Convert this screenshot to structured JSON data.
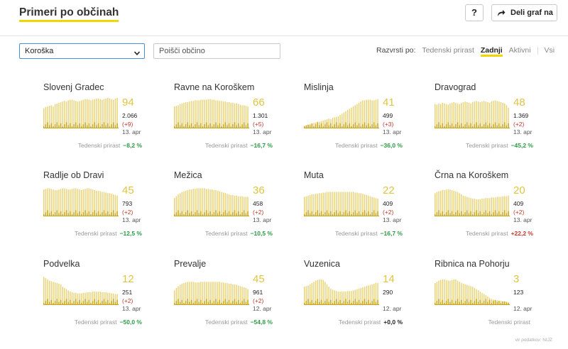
{
  "header": {
    "title": "Primeri po občinah",
    "help_label": "?",
    "share_label": "Deli graf na"
  },
  "filters": {
    "region": "Koroška",
    "search_placeholder": "Poišči občino",
    "sort_label": "Razvrsti po:",
    "sort_options": [
      {
        "label": "Tedenski prirast",
        "active": false
      },
      {
        "label": "Zadnji",
        "active": true
      },
      {
        "label": "Aktivni",
        "active": false
      },
      {
        "label": "Vsi",
        "active": false
      }
    ]
  },
  "colors": {
    "accent": "#f2d600",
    "bar_light": "#e8d376",
    "bar_dark": "#c9a417",
    "big_number": "#e0c441",
    "negative_growth": "#2e9a47",
    "positive_growth": "#c0392b"
  },
  "cards": [
    {
      "name": "Slovenj Gradec",
      "active": "94",
      "total": "2.066",
      "change": "(+9)",
      "date": "13. apr",
      "growth_label": "Tedenski prirast",
      "growth": "−8,2 %",
      "growth_sign": "neg",
      "series": [
        33,
        35,
        36,
        37,
        38,
        36,
        40,
        41,
        42,
        43,
        44,
        45,
        44,
        46,
        47,
        47,
        46,
        45,
        44,
        45,
        46,
        47,
        48,
        48,
        47,
        46,
        47,
        48,
        49,
        49,
        48,
        47,
        48,
        49,
        50,
        49,
        48,
        47,
        49,
        50
      ]
    },
    {
      "name": "Ravne na Koroškem",
      "active": "66",
      "total": "1.301",
      "change": "(+5)",
      "date": "13. apr",
      "growth_label": "Tedenski prirast",
      "growth": "−16,7 %",
      "growth_sign": "neg",
      "series": [
        36,
        37,
        38,
        40,
        41,
        42,
        43,
        43,
        44,
        45,
        45,
        46,
        46,
        46,
        47,
        47,
        47,
        47,
        48,
        48,
        47,
        47,
        46,
        46,
        45,
        45,
        44,
        44,
        43,
        43,
        42,
        42,
        41,
        41,
        40,
        39,
        38,
        38,
        37,
        36
      ]
    },
    {
      "name": "Mislinja",
      "active": "41",
      "total": "499",
      "change": "(+3)",
      "date": "13. apr",
      "growth_label": "Tedenski prirast",
      "growth": "−36,0 %",
      "growth_sign": "neg",
      "series": [
        4,
        5,
        6,
        7,
        8,
        9,
        10,
        11,
        11,
        12,
        13,
        14,
        15,
        16,
        15,
        17,
        18,
        19,
        20,
        22,
        24,
        26,
        28,
        30,
        32,
        34,
        36,
        38,
        40,
        42,
        44,
        46,
        46,
        47,
        47,
        47,
        46,
        46,
        47,
        48
      ]
    },
    {
      "name": "Dravograd",
      "active": "48",
      "total": "1.369",
      "change": "(+2)",
      "date": "13. apr",
      "growth_label": "Tedenski prirast",
      "growth": "−45,2 %",
      "growth_sign": "neg",
      "series": [
        40,
        39,
        41,
        40,
        42,
        41,
        40,
        39,
        41,
        42,
        43,
        42,
        41,
        40,
        42,
        43,
        44,
        43,
        42,
        41,
        43,
        44,
        45,
        44,
        43,
        44,
        45,
        44,
        43,
        42,
        44,
        45,
        46,
        45,
        44,
        43,
        42,
        41,
        38,
        34
      ]
    },
    {
      "name": "Radlje ob Dravi",
      "active": "45",
      "total": "793",
      "change": "(+2)",
      "date": "13. apr",
      "growth_label": "Tedenski prirast",
      "growth": "−12,5 %",
      "growth_sign": "neg",
      "series": [
        44,
        45,
        46,
        46,
        45,
        44,
        43,
        43,
        44,
        45,
        46,
        46,
        45,
        44,
        44,
        45,
        46,
        46,
        45,
        44,
        43,
        44,
        45,
        46,
        46,
        45,
        44,
        43,
        42,
        42,
        41,
        40,
        40,
        39,
        38,
        38,
        37,
        36,
        35,
        34
      ]
    },
    {
      "name": "Mežica",
      "active": "36",
      "total": "458",
      "change": "(+2)",
      "date": "13. apr",
      "growth_label": "Tedenski prirast",
      "growth": "−10,5 %",
      "growth_sign": "neg",
      "series": [
        30,
        33,
        36,
        38,
        40,
        41,
        42,
        43,
        44,
        44,
        45,
        45,
        46,
        46,
        46,
        46,
        46,
        45,
        45,
        44,
        44,
        43,
        43,
        42,
        41,
        40,
        39,
        38,
        37,
        36,
        35,
        35,
        34,
        34,
        33,
        33,
        33,
        32,
        32,
        32
      ]
    },
    {
      "name": "Muta",
      "active": "22",
      "total": "409",
      "change": "(+2)",
      "date": "13. apr",
      "growth_label": "Tedenski prirast",
      "growth": "−16,7 %",
      "growth_sign": "neg",
      "series": [
        32,
        33,
        34,
        35,
        36,
        36,
        37,
        37,
        38,
        38,
        39,
        39,
        40,
        40,
        40,
        40,
        40,
        40,
        40,
        40,
        40,
        40,
        40,
        40,
        40,
        40,
        40,
        39,
        39,
        38,
        38,
        37,
        36,
        35,
        34,
        33,
        32,
        31,
        30,
        29
      ]
    },
    {
      "name": "Črna na Koroškem",
      "active": "20",
      "total": "409",
      "change": "(+2)",
      "date": "13. apr",
      "growth_label": "Tedenski prirast",
      "growth": "+22,2 %",
      "growth_sign": "pos",
      "series": [
        38,
        40,
        41,
        42,
        43,
        43,
        44,
        44,
        44,
        43,
        42,
        41,
        40,
        38,
        36,
        34,
        33,
        32,
        31,
        30,
        29,
        29,
        28,
        28,
        28,
        29,
        29,
        30,
        30,
        30,
        31,
        31,
        31,
        32,
        32,
        32,
        33,
        33,
        33,
        34
      ]
    },
    {
      "name": "Podvelka",
      "active": "12",
      "total": "251",
      "change": "(+2)",
      "date": "13. apr",
      "growth_label": "Tedenski prirast",
      "growth": "−50,0 %",
      "growth_sign": "neg",
      "series": [
        46,
        44,
        42,
        40,
        39,
        38,
        37,
        36,
        35,
        34,
        30,
        28,
        26,
        24,
        22,
        21,
        20,
        20,
        19,
        19,
        19,
        20,
        20,
        21,
        21,
        21,
        22,
        22,
        22,
        22,
        22,
        21,
        21,
        21,
        20,
        20,
        19,
        19,
        18,
        18
      ]
    },
    {
      "name": "Prevalje",
      "active": "45",
      "total": "961",
      "change": "(+2)",
      "date": "12. apr",
      "growth_label": "Tedenski prirast",
      "growth": "−54,8 %",
      "growth_sign": "neg",
      "series": [
        24,
        28,
        31,
        33,
        35,
        36,
        37,
        38,
        38,
        38,
        38,
        37,
        37,
        37,
        38,
        38,
        38,
        38,
        38,
        38,
        38,
        38,
        38,
        38,
        38,
        37,
        37,
        36,
        36,
        35,
        35,
        34,
        34,
        33,
        32,
        31,
        30,
        29,
        28,
        26
      ]
    },
    {
      "name": "Vuzenica",
      "active": "14",
      "total": "290",
      "change": "",
      "date": "12. apr",
      "growth_label": "Tedenski prirast",
      "growth": "+0,0 %",
      "growth_sign": "zero",
      "series": [
        30,
        31,
        32,
        34,
        36,
        38,
        40,
        41,
        42,
        42,
        41,
        38,
        34,
        30,
        27,
        25,
        24,
        23,
        22,
        22,
        22,
        22,
        22,
        23,
        23,
        23,
        24,
        25,
        26,
        27,
        28,
        29,
        30,
        31,
        32,
        33,
        34,
        35,
        36,
        36
      ]
    },
    {
      "name": "Ribnica na Pohorju",
      "active": "3",
      "total": "123",
      "change": "",
      "date": "12. apr",
      "growth_label": "Tedenski prirast",
      "growth": "",
      "growth_sign": "zero",
      "series": [
        36,
        38,
        40,
        41,
        42,
        42,
        41,
        40,
        40,
        41,
        42,
        42,
        40,
        38,
        36,
        35,
        34,
        33,
        32,
        31,
        30,
        28,
        26,
        24,
        22,
        20,
        18,
        16,
        14,
        12,
        10,
        9,
        8,
        8,
        7,
        7,
        6,
        6,
        5,
        4
      ]
    }
  ],
  "source": "vir podatkov: NIJZ"
}
